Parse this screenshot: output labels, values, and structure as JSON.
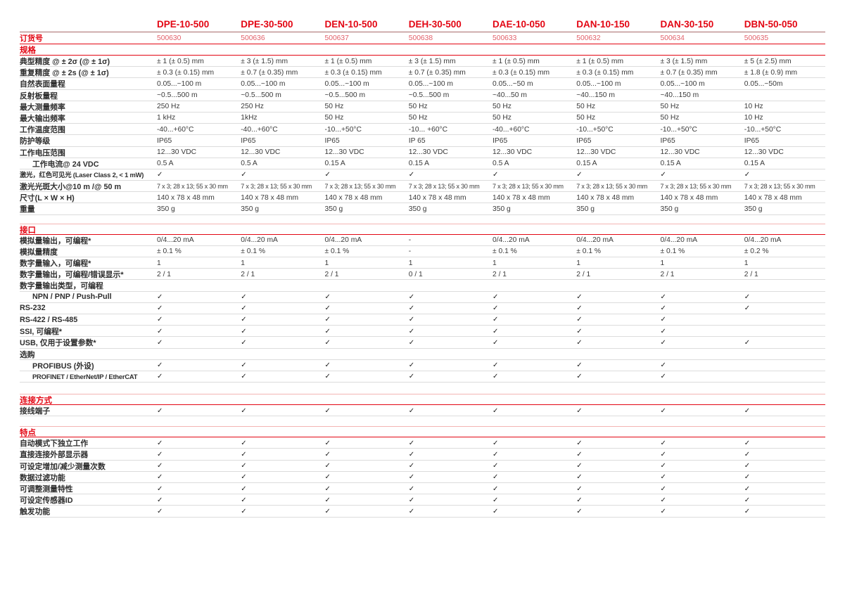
{
  "colors": {
    "brand_red": "#e30613",
    "order_number_red": "#e2606a",
    "row_separator_gray": "#dcdcdc",
    "section_top_line_salmon": "#f3b5b3"
  },
  "check_glyph": "✓",
  "table": {
    "columns": [
      "DPE-10-500",
      "DPE-30-500",
      "DEN-10-500",
      "DEH-30-500",
      "DAE-10-050",
      "DAN-10-150",
      "DAN-30-150",
      "DBN-50-050"
    ],
    "order_row": {
      "label": "订货号",
      "values": [
        "500630",
        "500636",
        "500637",
        "500638",
        "500633",
        "500632",
        "500634",
        "500635"
      ]
    },
    "sections": [
      {
        "title": "规格",
        "rows": [
          {
            "label": "典型精度 @ ± 2σ (@ ± 1σ)",
            "indent": false,
            "values": [
              "± 1 (± 0.5) mm",
              "± 3 (± 1.5) mm",
              "± 1 (± 0.5) mm",
              "± 3 (± 1.5) mm",
              "± 1 (± 0.5) mm",
              "± 1 (± 0.5) mm",
              "± 3 (± 1.5) mm",
              "± 5 (± 2.5) mm"
            ]
          },
          {
            "label": "重复精度 @ ± 2s (@ ± 1σ)",
            "indent": false,
            "values": [
              "± 0.3 (± 0.15) mm",
              "± 0.7 (± 0.35) mm",
              "± 0.3 (± 0.15) mm",
              "± 0.7 (± 0.35) mm",
              "± 0.3 (± 0.15) mm",
              "± 0.3 (± 0.15) mm",
              "± 0.7 (± 0.35) mm",
              "± 1.8 (± 0.9) mm"
            ]
          },
          {
            "label": "自然表面量程",
            "indent": false,
            "values": [
              "0.05...~100 m",
              "0.05...~100 m",
              "0.05...~100 m",
              "0.05...~100 m",
              "0.05...~50 m",
              "0.05...~100 m",
              "0.05...~100 m",
              "0.05...~50m"
            ]
          },
          {
            "label": "反射板量程",
            "indent": false,
            "values": [
              "~0.5...500 m",
              "~0.5...500 m",
              "~0.5...500 m",
              "~0.5...500 m",
              "~40...50 m",
              "~40...150 m",
              "~40...150 m",
              ""
            ]
          },
          {
            "label": "最大测量频率",
            "indent": false,
            "values": [
              "250 Hz",
              "250 Hz",
              "50 Hz",
              "50 Hz",
              "50 Hz",
              "50 Hz",
              "50 Hz",
              "10 Hz"
            ]
          },
          {
            "label": "最大输出频率",
            "indent": false,
            "values": [
              "1 kHz",
              "1kHz",
              "50 Hz",
              "50 Hz",
              "50 Hz",
              "50 Hz",
              "50 Hz",
              "10 Hz"
            ]
          },
          {
            "label": "工作温度范围",
            "indent": false,
            "values": [
              "-40...+60°C",
              "-40...+60°C",
              "-10...+50°C",
              "-10... +60°C",
              "-40...+60°C",
              "-10...+50°C",
              "-10...+50°C",
              "-10...+50°C"
            ]
          },
          {
            "label": "防护等级",
            "indent": false,
            "values": [
              "IP65",
              "IP65",
              "IP65",
              "IP 65",
              "IP65",
              "IP65",
              "IP65",
              "IP65"
            ]
          },
          {
            "label": "工作电压范围",
            "indent": false,
            "values": [
              "12...30 VDC",
              "12...30 VDC",
              "12...30 VDC",
              "12...30 VDC",
              "12...30 VDC",
              "12...30 VDC",
              "12...30 VDC",
              "12...30 VDC"
            ]
          },
          {
            "label": "工作电流@ 24 VDC",
            "indent": true,
            "values": [
              "0.5 A",
              "0.5 A",
              "0.15 A",
              "0.15 A",
              "0.5 A",
              "0.15 A",
              "0.15 A",
              "0.15 A"
            ]
          },
          {
            "label": "激光，红色可见光 (Laser Class 2, < 1 mW)",
            "indent": false,
            "values": [
              "✓",
              "✓",
              "✓",
              "✓",
              "✓",
              "✓",
              "✓",
              "✓"
            ]
          },
          {
            "label": "激光光斑大小@10 m /@ 50 m",
            "indent": false,
            "values": [
              "7 x 3; 28 x 13; 55 x 30 mm",
              "7 x 3; 28 x 13; 55 x 30 mm",
              "7 x 3; 28 x 13; 55 x 30 mm",
              "7 x 3; 28 x 13; 55 x 30 mm",
              "7 x 3; 28 x 13; 55 x 30 mm",
              "7 x 3; 28 x 13; 55 x 30 mm",
              "7 x 3; 28 x 13; 55 x 30 mm",
              "7 x 3; 28 x 13; 55 x 30 mm"
            ]
          },
          {
            "label": "尺寸(L × W × H)",
            "indent": false,
            "values": [
              "140 x 78 x 48 mm",
              "140 x 78 x 48 mm",
              "140 x 78 x 48 mm",
              "140 x 78 x 48 mm",
              "140 x 78 x 48 mm",
              "140 x 78 x 48 mm",
              "140 x 78 x 48 mm",
              "140 x 78 x 48 mm"
            ]
          },
          {
            "label": "重量",
            "indent": false,
            "values": [
              "350 g",
              "350 g",
              "350 g",
              "350 g",
              "350 g",
              "350 g",
              "350 g",
              "350 g"
            ]
          }
        ]
      },
      {
        "title": "接口",
        "rows": [
          {
            "label": "模拟量输出，可编程*",
            "indent": false,
            "values": [
              "0/4...20 mA",
              "0/4...20 mA",
              "0/4...20 mA",
              "-",
              "0/4...20 mA",
              "0/4...20 mA",
              "0/4...20 mA",
              "0/4...20 mA"
            ]
          },
          {
            "label": "模拟量精度",
            "indent": false,
            "values": [
              "± 0.1 %",
              "± 0.1 %",
              "± 0.1 %",
              "-",
              "± 0.1 %",
              "± 0.1 %",
              "± 0.1 %",
              "± 0.2 %"
            ]
          },
          {
            "label": "数字量输入，可编程*",
            "indent": false,
            "values": [
              "1",
              "1",
              "1",
              "1",
              "1",
              "1",
              "1",
              "1"
            ]
          },
          {
            "label": "数字量输出，可编程/错误显示*",
            "indent": false,
            "values": [
              "2 / 1",
              "2 / 1",
              "2 / 1",
              "0 / 1",
              "2 / 1",
              "2 / 1",
              "2 / 1",
              "2 / 1"
            ]
          },
          {
            "label": "数字量输出类型，可编程",
            "indent": false,
            "values": [
              "",
              "",
              "",
              "",
              "",
              "",
              "",
              ""
            ]
          },
          {
            "label": "NPN / PNP / Push-Pull",
            "indent": true,
            "values": [
              "✓",
              "✓",
              "✓",
              "✓",
              "✓",
              "✓",
              "✓",
              "✓"
            ]
          },
          {
            "label": "RS-232",
            "indent": false,
            "values": [
              "✓",
              "✓",
              "✓",
              "✓",
              "✓",
              "✓",
              "✓",
              "✓"
            ]
          },
          {
            "label": "RS-422 / RS-485",
            "indent": false,
            "values": [
              "✓",
              "✓",
              "✓",
              "✓",
              "✓",
              "✓",
              "✓",
              ""
            ]
          },
          {
            "label": "SSI, 可编程*",
            "indent": false,
            "values": [
              "✓",
              "✓",
              "✓",
              "✓",
              "✓",
              "✓",
              "✓",
              ""
            ]
          },
          {
            "label": "USB, 仅用于设置参数*",
            "indent": false,
            "values": [
              "✓",
              "✓",
              "✓",
              "✓",
              "✓",
              "✓",
              "✓",
              "✓"
            ]
          },
          {
            "label": "选购",
            "indent": false,
            "values": [
              "",
              "",
              "",
              "",
              "",
              "",
              "",
              ""
            ]
          },
          {
            "label": "PROFIBUS (外设)",
            "indent": true,
            "values": [
              "✓",
              "✓",
              "✓",
              "✓",
              "✓",
              "✓",
              "✓",
              ""
            ]
          },
          {
            "label": "PROFINET / EtherNet/IP / EtherCAT",
            "indent": true,
            "values": [
              "✓",
              "✓",
              "✓",
              "✓",
              "✓",
              "✓",
              "✓",
              ""
            ]
          }
        ]
      },
      {
        "title": "连接方式",
        "rows": [
          {
            "label": "接线端子",
            "indent": false,
            "values": [
              "✓",
              "✓",
              "✓",
              "✓",
              "✓",
              "✓",
              "✓",
              "✓"
            ]
          }
        ]
      },
      {
        "title": "特点",
        "rows": [
          {
            "label": "自动模式下独立工作",
            "indent": false,
            "values": [
              "✓",
              "✓",
              "✓",
              "✓",
              "✓",
              "✓",
              "✓",
              "✓"
            ]
          },
          {
            "label": "直接连接外部显示器",
            "indent": false,
            "values": [
              "✓",
              "✓",
              "✓",
              "✓",
              "✓",
              "✓",
              "✓",
              "✓"
            ]
          },
          {
            "label": "可设定增加/减少测量次数",
            "indent": false,
            "values": [
              "✓",
              "✓",
              "✓",
              "✓",
              "✓",
              "✓",
              "✓",
              "✓"
            ]
          },
          {
            "label": "数据过滤功能",
            "indent": false,
            "values": [
              "✓",
              "✓",
              "✓",
              "✓",
              "✓",
              "✓",
              "✓",
              "✓"
            ]
          },
          {
            "label": "可调整测量特性",
            "indent": false,
            "values": [
              "✓",
              "✓",
              "✓",
              "✓",
              "✓",
              "✓",
              "✓",
              "✓"
            ]
          },
          {
            "label": "可设定传感器ID",
            "indent": false,
            "values": [
              "✓",
              "✓",
              "✓",
              "✓",
              "✓",
              "✓",
              "✓",
              "✓"
            ]
          },
          {
            "label": "触发功能",
            "indent": false,
            "values": [
              "✓",
              "✓",
              "✓",
              "✓",
              "✓",
              "✓",
              "✓",
              "✓"
            ]
          }
        ]
      }
    ]
  }
}
